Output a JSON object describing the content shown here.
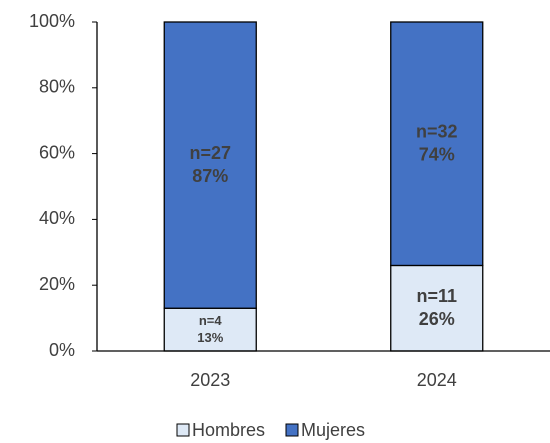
{
  "chart_data": {
    "type": "stacked_bar",
    "categories": [
      "2023",
      "2024"
    ],
    "series": [
      {
        "name": "Hombres",
        "color": "#dee9f6",
        "values": [
          13,
          26
        ],
        "value_labels": [
          "13%",
          "26%"
        ],
        "n_labels": [
          "n=4",
          "n=11"
        ]
      },
      {
        "name": "Mujeres",
        "color": "#4472c4",
        "values": [
          87,
          74
        ],
        "value_labels": [
          "87%",
          "74%"
        ],
        "n_labels": [
          "n=27",
          "n=32"
        ]
      }
    ],
    "ylim": [
      0,
      100
    ],
    "yticks": [
      {
        "value": 0,
        "label": "0%"
      },
      {
        "value": 20,
        "label": "20%"
      },
      {
        "value": 40,
        "label": "40%"
      },
      {
        "value": 60,
        "label": "60%"
      },
      {
        "value": 80,
        "label": "80%"
      },
      {
        "value": 100,
        "label": "100%"
      }
    ],
    "legend": "bottom"
  }
}
